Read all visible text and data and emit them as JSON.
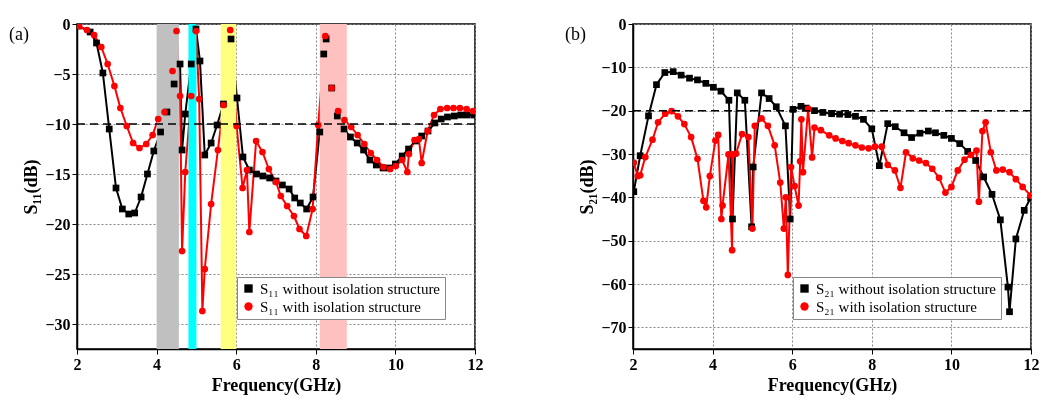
{
  "chart_data": [
    {
      "type": "line",
      "annotations": [
        "(a)"
      ],
      "xlabel": "Frequency(GHz)",
      "ylabel": "S₁₁(dB)",
      "xlim": [
        2,
        12
      ],
      "xticks": [
        2,
        4,
        6,
        8,
        10,
        12
      ],
      "ylim": [
        -32.5,
        0
      ],
      "yticks": [
        -30,
        -25,
        -20,
        -15,
        -10,
        -5,
        0
      ],
      "grid": true,
      "legend": "bottom right",
      "ref_lines": [
        {
          "axis": "y",
          "value": -10,
          "label": null,
          "color": "#000000",
          "line_style": "dashed"
        }
      ],
      "bands": [
        {
          "axis": "x",
          "from": 4.0,
          "to": 4.56,
          "label": null,
          "color": "#c0c0c0"
        },
        {
          "axis": "x",
          "from": 4.8,
          "to": 5.0,
          "label": null,
          "color": "#00ffff"
        },
        {
          "axis": "x",
          "from": 5.61,
          "to": 6.0,
          "label": null,
          "color": "#ffff80"
        },
        {
          "axis": "x",
          "from": 8.1,
          "to": 8.78,
          "label": null,
          "color": "#ffc0c0"
        }
      ],
      "series": [
        {
          "name": "S₁₁ without isolation structure",
          "color": "#000000",
          "marker": "square",
          "x": [
            2.04,
            2.33,
            2.49,
            2.65,
            2.81,
            2.98,
            3.14,
            3.3,
            3.45,
            3.61,
            3.77,
            3.93,
            4.1,
            4.26,
            4.44,
            4.59,
            4.64,
            4.72,
            4.87,
            4.99,
            5.09,
            5.21,
            5.37,
            5.52,
            5.68,
            5.87,
            6.02,
            6.17,
            6.33,
            6.51,
            6.67,
            6.84,
            7.0,
            7.16,
            7.33,
            7.47,
            7.61,
            7.77,
            7.93,
            8.1,
            8.2,
            8.26,
            8.4,
            8.54,
            8.71,
            8.87,
            9.04,
            9.2,
            9.36,
            9.52,
            9.69,
            9.85,
            10.0,
            10.17,
            10.33,
            10.5,
            10.66,
            10.82,
            10.99,
            11.15,
            11.31,
            11.48,
            11.64,
            11.8,
            11.97
          ],
          "values": [
            -0.2,
            -0.8,
            -1.9,
            -4.9,
            -10.5,
            -16.4,
            -18.5,
            -19.0,
            -18.9,
            -17.3,
            -15.0,
            -12.7,
            -10.8,
            -8.8,
            -6.0,
            -4.0,
            -12.6,
            -9.0,
            -4.0,
            -0.5,
            -3.7,
            -13.1,
            -11.9,
            -10.1,
            -8.0,
            -1.5,
            -7.4,
            -13.3,
            -14.6,
            -15.0,
            -15.2,
            -15.4,
            -15.7,
            -16.1,
            -16.5,
            -17.4,
            -17.9,
            -18.5,
            -17.3,
            -10.8,
            -3.0,
            -1.5,
            -6.4,
            -9.2,
            -10.5,
            -11.3,
            -11.9,
            -12.6,
            -13.6,
            -14.1,
            -14.4,
            -14.4,
            -14.0,
            -13.2,
            -12.5,
            -11.7,
            -11.2,
            -10.7,
            -9.9,
            -9.5,
            -9.3,
            -9.2,
            -9.1,
            -9.1,
            -9.1
          ]
        },
        {
          "name": "S₁₁ with isolation structure",
          "color": "#ff0000",
          "marker": "circle",
          "x": [
            2.05,
            2.25,
            2.43,
            2.61,
            2.77,
            2.94,
            3.09,
            3.25,
            3.41,
            3.57,
            3.74,
            3.9,
            4.04,
            4.2,
            4.4,
            4.5,
            4.59,
            4.64,
            4.72,
            4.87,
            4.99,
            5.07,
            5.15,
            5.21,
            5.37,
            5.54,
            5.68,
            5.85,
            6.01,
            6.16,
            6.27,
            6.33,
            6.5,
            6.66,
            6.82,
            7.0,
            7.12,
            7.28,
            7.45,
            7.59,
            7.76,
            7.92,
            8.06,
            8.24,
            8.4,
            8.56,
            8.72,
            8.89,
            9.05,
            9.22,
            9.38,
            9.54,
            9.7,
            9.87,
            10.01,
            10.17,
            10.3,
            10.34,
            10.48,
            10.59,
            10.66,
            10.81,
            10.97,
            11.13,
            11.3,
            11.46,
            11.62,
            11.79,
            11.95
          ],
          "values": [
            -0.2,
            -0.6,
            -1.1,
            -2.3,
            -4.0,
            -6.2,
            -8.4,
            -10.2,
            -11.9,
            -12.4,
            -12.0,
            -11.1,
            -9.5,
            -8.8,
            -4.7,
            -0.7,
            -7.2,
            -22.7,
            -14.8,
            -7.2,
            -0.7,
            -7.5,
            -28.7,
            -24.5,
            -18.0,
            -12.6,
            -8.1,
            -0.6,
            -10.2,
            -16.4,
            -14.6,
            -20.8,
            -11.7,
            -12.8,
            -14.5,
            -15.8,
            -17.2,
            -18.2,
            -19.2,
            -20.5,
            -21.2,
            -18.5,
            -10.1,
            -1.2,
            -6.4,
            -8.7,
            -9.6,
            -10.3,
            -11.1,
            -12.0,
            -12.9,
            -13.6,
            -14.3,
            -14.5,
            -14.2,
            -13.6,
            -14.8,
            -13.0,
            -11.6,
            -11.5,
            -13.9,
            -10.7,
            -9.1,
            -8.5,
            -8.4,
            -8.4,
            -8.4,
            -8.5,
            -8.7
          ]
        }
      ]
    },
    {
      "type": "line",
      "annotations": [
        "(b)"
      ],
      "xlabel": "Frequency(GHz)",
      "ylabel": "S₂₁(dB)",
      "xlim": [
        2,
        12
      ],
      "xticks": [
        2,
        4,
        6,
        8,
        10,
        12
      ],
      "ylim": [
        -75,
        0
      ],
      "yticks": [
        -70,
        -60,
        -50,
        -40,
        -30,
        -20,
        -10,
        0
      ],
      "grid": true,
      "legend": "bottom right",
      "ref_lines": [
        {
          "axis": "y",
          "value": -20,
          "label": null,
          "color": "#000000",
          "line_style": "dashed"
        }
      ],
      "series": [
        {
          "name": "S₂₁ without isolation structure",
          "color": "#000000",
          "marker": "square",
          "x": [
            2.02,
            2.18,
            2.39,
            2.59,
            2.8,
            3.01,
            3.21,
            3.42,
            3.62,
            3.83,
            4.02,
            4.21,
            4.41,
            4.5,
            4.62,
            4.81,
            4.98,
            5.02,
            5.23,
            5.42,
            5.6,
            5.83,
            5.95,
            6.02,
            6.22,
            6.35,
            6.56,
            6.77,
            6.99,
            7.19,
            7.4,
            7.59,
            7.79,
            8.0,
            8.19,
            8.4,
            8.59,
            8.81,
            9.0,
            9.21,
            9.42,
            9.6,
            9.81,
            10.0,
            10.21,
            10.41,
            10.61,
            10.81,
            11.02,
            11.23,
            11.42,
            11.46,
            11.62,
            11.83,
            11.99
          ],
          "values": [
            -38.7,
            -30.4,
            -21.2,
            -14.0,
            -11.2,
            -11.0,
            -11.8,
            -12.5,
            -12.9,
            -13.7,
            -14.6,
            -15.5,
            -17.6,
            -45,
            -15.9,
            -17.6,
            -46.8,
            -33,
            -15.9,
            -17.2,
            -19.1,
            -23.5,
            -45,
            -19.7,
            -19.0,
            -19.4,
            -20.0,
            -20.4,
            -20.7,
            -20.8,
            -20.9,
            -21.3,
            -22.0,
            -24.2,
            -32.7,
            -23.0,
            -23.7,
            -25.1,
            -26.2,
            -25.2,
            -24.7,
            -25.1,
            -25.7,
            -26.4,
            -27.6,
            -29.4,
            -31.5,
            -35.3,
            -39.3,
            -45.2,
            -60.7,
            -66.4,
            -49.6,
            -43.0,
            -40.1
          ]
        },
        {
          "name": "S₂₁ with isolation structure",
          "color": "#ff0000",
          "marker": "circle",
          "x": [
            2.02,
            2.12,
            2.18,
            2.31,
            2.49,
            2.63,
            2.81,
            2.97,
            3.13,
            3.29,
            3.46,
            3.62,
            3.77,
            3.84,
            3.93,
            4.07,
            4.14,
            4.22,
            4.25,
            4.4,
            4.49,
            4.51,
            4.59,
            4.74,
            4.9,
            5.0,
            5.06,
            5.23,
            5.39,
            5.56,
            5.7,
            5.79,
            5.84,
            5.89,
            5.97,
            6.06,
            6.16,
            6.2,
            6.23,
            6.27,
            6.4,
            6.5,
            6.56,
            6.72,
            6.93,
            7.09,
            7.26,
            7.42,
            7.59,
            7.75,
            7.92,
            8.08,
            8.25,
            8.4,
            8.58,
            8.72,
            8.86,
            9.03,
            9.19,
            9.36,
            9.52,
            9.69,
            9.85,
            10.0,
            10.16,
            10.33,
            10.49,
            10.63,
            10.69,
            10.78,
            10.86,
            10.99,
            11.13,
            11.29,
            11.46,
            11.62,
            11.79,
            11.99
          ],
          "values": [
            -32.0,
            -35.1,
            -34.9,
            -30.7,
            -26.7,
            -22.7,
            -20.7,
            -20.1,
            -21.3,
            -23.1,
            -26.1,
            -31.1,
            -40.8,
            -42.3,
            -35.1,
            -26.9,
            -25.6,
            -45,
            -41.9,
            -30.1,
            -52.2,
            -30.1,
            -29.9,
            -25.4,
            -26.1,
            -47.2,
            -23.5,
            -21.8,
            -23.5,
            -28.0,
            -36.6,
            -47.2,
            -40,
            -57.9,
            -33,
            -37.4,
            -41.9,
            -31.7,
            -22,
            -34.2,
            -19.6,
            -30.8,
            -23.9,
            -24.5,
            -25.7,
            -26.4,
            -27.0,
            -27.5,
            -28.0,
            -28.5,
            -28.7,
            -28.3,
            -28.3,
            -32.5,
            -33.8,
            -37.8,
            -29.6,
            -31.0,
            -31.5,
            -32.1,
            -33.4,
            -35.5,
            -38.9,
            -37.6,
            -33.8,
            -31.3,
            -30.2,
            -29.2,
            -41.0,
            -24.7,
            -22.7,
            -29.6,
            -33.8,
            -33.6,
            -34.2,
            -35.8,
            -37.6,
            -39.6
          ]
        }
      ]
    }
  ]
}
